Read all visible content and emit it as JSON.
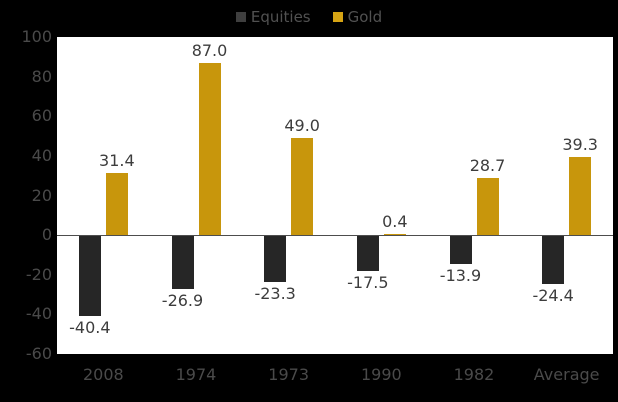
{
  "chart_data": {
    "type": "bar",
    "title": "",
    "categories": [
      "2008",
      "1974",
      "1973",
      "1990",
      "1982",
      "Average"
    ],
    "series": [
      {
        "name": "Equities",
        "color": "#262626",
        "values": [
          -40.4,
          -26.9,
          -23.3,
          -17.5,
          -13.9,
          -24.4
        ]
      },
      {
        "name": "Gold",
        "color": "#C8960C",
        "values": [
          31.4,
          87.0,
          49.0,
          0.4,
          28.7,
          39.3
        ]
      }
    ],
    "xlabel": "",
    "ylabel": "",
    "ylim": [
      -60,
      100
    ],
    "yticks": [
      100,
      80,
      60,
      40,
      20,
      0,
      -20,
      -40,
      -60
    ],
    "grid": false,
    "legend_position": "top-center",
    "data_labels": true,
    "label_format": "one-decimal"
  },
  "legend": {
    "items": [
      {
        "label": "Equities",
        "marker_color": "#3F3F3F"
      },
      {
        "label": "Gold",
        "marker_color": "#D6A414"
      }
    ]
  },
  "colors": {
    "background": "#000000",
    "plot_background": "#FFFFFF",
    "axis_text": "#4A4A4A",
    "legend_text": "#515151",
    "data_label_text": "#3D3D3D",
    "zero_line": "#4D4D4D"
  }
}
